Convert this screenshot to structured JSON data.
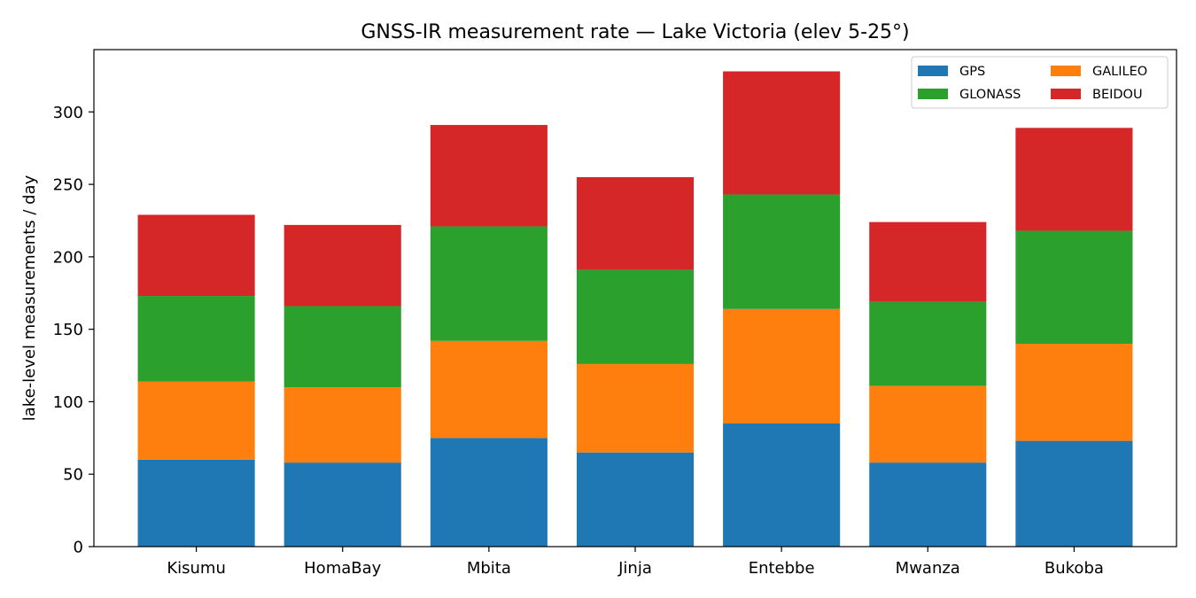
{
  "chart_data": {
    "type": "bar",
    "stacked": true,
    "title": "GNSS-IR measurement rate — Lake Victoria (elev 5-25°)",
    "xlabel": "",
    "ylabel": "lake-level measurements / day",
    "categories": [
      "Kisumu",
      "HomaBay",
      "Mbita",
      "Jinja",
      "Entebbe",
      "Mwanza",
      "Bukoba"
    ],
    "series": [
      {
        "name": "GPS",
        "color": "#1f77b4",
        "values": [
          60,
          58,
          75,
          65,
          85,
          58,
          73
        ]
      },
      {
        "name": "GALILEO",
        "color": "#ff7f0e",
        "values": [
          54,
          52,
          67,
          61,
          79,
          53,
          67
        ]
      },
      {
        "name": "GLONASS",
        "color": "#2ca02c",
        "values": [
          59,
          56,
          79,
          65,
          79,
          58,
          78
        ]
      },
      {
        "name": "BEIDOU",
        "color": "#d62728",
        "values": [
          56,
          56,
          70,
          64,
          85,
          55,
          71
        ]
      }
    ],
    "ylim": [
      0,
      343
    ],
    "yticks": [
      0,
      50,
      100,
      150,
      200,
      250,
      300
    ],
    "grid": false,
    "legend_position": "top-right",
    "legend_columns": 2
  }
}
